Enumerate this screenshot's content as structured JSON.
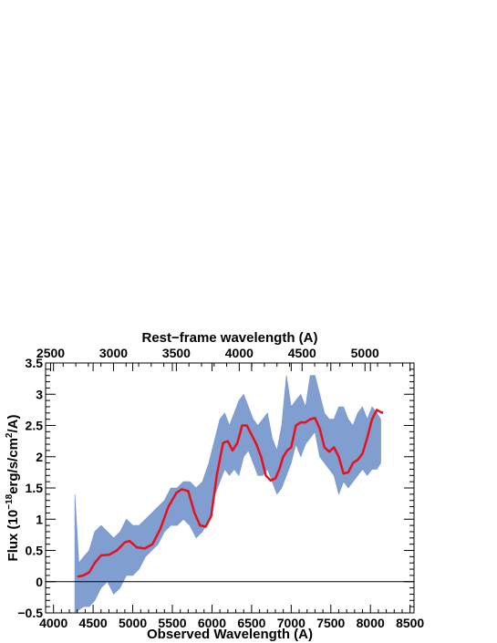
{
  "chart_data": {
    "type": "line",
    "title": "",
    "xlabel": "Observed Wavelength (A)",
    "ylabel_parts": {
      "pre": "Flux (10",
      "exp": "−18",
      "mid": "erg/s/cm",
      "exp2": "2",
      "post": "/A)"
    },
    "top_xlabel": "Rest−frame wavelength (A)",
    "xlim": [
      3900,
      8550
    ],
    "ylim": [
      -0.5,
      3.5
    ],
    "top_xlim": [
      2460,
      5390
    ],
    "x_ticks": [
      4000,
      4500,
      5000,
      5500,
      6000,
      6500,
      7000,
      7500,
      8000,
      8500
    ],
    "x_tick_labels": [
      "4000",
      "4500",
      "5000",
      "5500",
      "6000",
      "6500",
      "7000",
      "7500",
      "8000",
      "8500"
    ],
    "y_ticks": [
      -0.5,
      0,
      0.5,
      1,
      1.5,
      2,
      2.5,
      3,
      3.5
    ],
    "y_tick_labels": [
      "−0.5",
      "0",
      "0.5",
      "1",
      "1.5",
      "2",
      "2.5",
      "3",
      "3.5"
    ],
    "top_ticks": [
      2500,
      3000,
      3500,
      4000,
      4500,
      5000
    ],
    "top_tick_labels": [
      "2500",
      "3000",
      "3500",
      "4000",
      "4500",
      "5000"
    ],
    "zero_line": 0,
    "colors": {
      "spectrum": "#7393cc",
      "model": "#e8101a",
      "axis": "#000000"
    },
    "series": [
      {
        "role": "observed-spectrum-band",
        "x": [
          4270,
          4320,
          4380,
          4450,
          4520,
          4600,
          4680,
          4760,
          4840,
          4920,
          5000,
          5080,
          5160,
          5240,
          5320,
          5400,
          5480,
          5560,
          5640,
          5720,
          5800,
          5880,
          5960,
          6040,
          6100,
          6160,
          6220,
          6280,
          6340,
          6400,
          6460,
          6520,
          6580,
          6640,
          6700,
          6760,
          6820,
          6880,
          6940,
          7000,
          7060,
          7120,
          7180,
          7240,
          7300,
          7360,
          7420,
          7480,
          7540,
          7600,
          7660,
          7720,
          7780,
          7840,
          7900,
          7960,
          8020,
          8080,
          8130
        ],
        "lo": [
          -0.5,
          -0.45,
          -0.4,
          -0.4,
          -0.3,
          -0.1,
          0.0,
          -0.2,
          -0.1,
          0.1,
          0.1,
          0.2,
          0.4,
          0.5,
          0.6,
          0.8,
          0.9,
          0.9,
          1.0,
          0.9,
          0.7,
          0.8,
          1.0,
          1.4,
          1.6,
          1.8,
          1.7,
          1.8,
          1.7,
          2.0,
          2.1,
          1.9,
          1.7,
          1.7,
          1.8,
          1.6,
          1.4,
          1.5,
          1.7,
          1.9,
          2.2,
          2.0,
          2.2,
          2.3,
          2.4,
          2.0,
          1.9,
          1.8,
          1.7,
          1.4,
          1.6,
          1.5,
          1.6,
          1.7,
          1.8,
          1.7,
          1.8,
          1.8,
          1.9
        ],
        "hi": [
          1.4,
          0.3,
          0.4,
          0.5,
          0.8,
          0.9,
          0.8,
          0.7,
          0.8,
          1.0,
          0.9,
          0.9,
          1.0,
          1.1,
          1.2,
          1.3,
          1.5,
          1.5,
          1.6,
          1.6,
          1.5,
          1.6,
          1.9,
          2.3,
          2.6,
          2.7,
          2.5,
          2.7,
          2.9,
          3.0,
          2.8,
          2.6,
          2.5,
          2.6,
          2.7,
          2.3,
          2.1,
          2.5,
          3.3,
          2.8,
          2.9,
          3.0,
          2.8,
          3.3,
          3.3,
          3.0,
          2.7,
          2.6,
          2.6,
          2.8,
          2.8,
          2.6,
          2.5,
          2.7,
          2.8,
          2.6,
          2.8,
          2.7,
          2.6
        ]
      },
      {
        "role": "model-fit",
        "x": [
          4300,
          4380,
          4450,
          4520,
          4600,
          4700,
          4800,
          4900,
          4960,
          5050,
          5150,
          5250,
          5350,
          5450,
          5550,
          5620,
          5700,
          5780,
          5850,
          5920,
          5990,
          6060,
          6140,
          6200,
          6260,
          6320,
          6380,
          6440,
          6500,
          6560,
          6620,
          6680,
          6740,
          6800,
          6850,
          6900,
          6950,
          7000,
          7060,
          7120,
          7180,
          7240,
          7300,
          7360,
          7420,
          7480,
          7540,
          7600,
          7660,
          7720,
          7780,
          7840,
          7900,
          7960,
          8020,
          8080,
          8120,
          8160
        ],
        "y": [
          0.08,
          0.1,
          0.15,
          0.3,
          0.42,
          0.43,
          0.5,
          0.63,
          0.65,
          0.55,
          0.53,
          0.6,
          0.85,
          1.2,
          1.42,
          1.48,
          1.45,
          1.1,
          0.9,
          0.88,
          1.05,
          1.7,
          2.22,
          2.25,
          2.1,
          2.22,
          2.5,
          2.5,
          2.35,
          2.2,
          2.0,
          1.7,
          1.62,
          1.65,
          1.8,
          2.0,
          2.1,
          2.15,
          2.5,
          2.55,
          2.55,
          2.6,
          2.62,
          2.45,
          2.15,
          2.08,
          2.15,
          2.0,
          1.73,
          1.75,
          1.9,
          1.95,
          2.05,
          2.3,
          2.6,
          2.75,
          2.72,
          2.7
        ]
      }
    ]
  }
}
